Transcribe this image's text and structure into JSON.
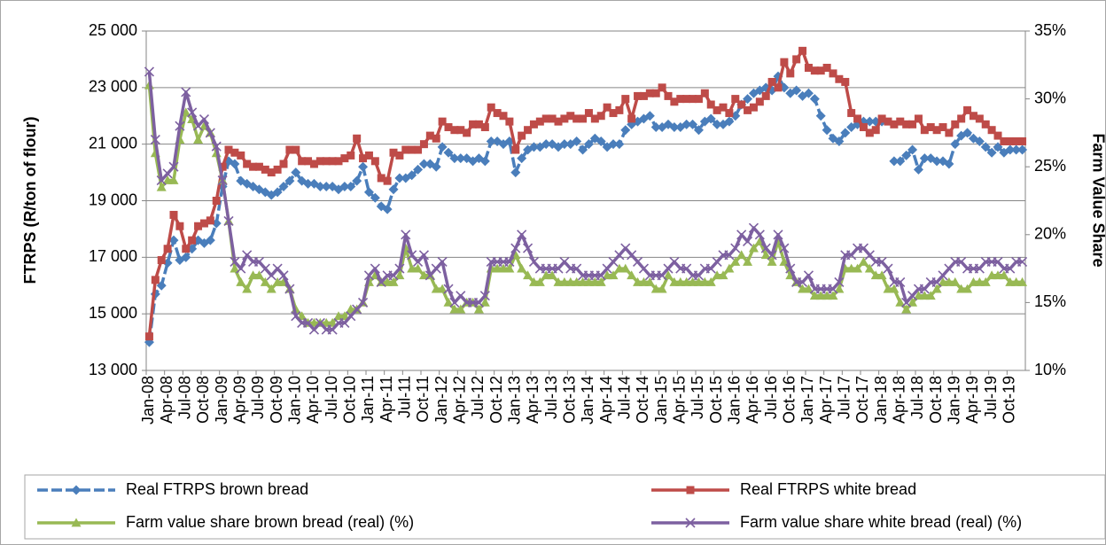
{
  "chart_data": {
    "type": "line",
    "y_label": "FTRPS (R/ton of flour)",
    "y2_label": "Farm Value Share",
    "categories": [
      "Jan-08",
      null,
      null,
      "Apr-08",
      null,
      null,
      "Jul-08",
      null,
      null,
      "Oct-08",
      null,
      null,
      "Jan-09",
      null,
      null,
      "Apr-09",
      null,
      null,
      "Jul-09",
      null,
      null,
      "Oct-09",
      null,
      null,
      "Jan-10",
      null,
      null,
      "Apr-10",
      null,
      null,
      "Jul-10",
      null,
      null,
      "Oct-10",
      null,
      null,
      "Jan-11",
      null,
      null,
      "Apr-11",
      null,
      null,
      "Jul-11",
      null,
      null,
      "Oct-11",
      null,
      null,
      "Jan-12",
      null,
      null,
      "Apr-12",
      null,
      null,
      "Jul-12",
      null,
      null,
      "Oct-12",
      null,
      null,
      "Jan-13",
      null,
      null,
      "Apr-13",
      null,
      null,
      "Jul-13",
      null,
      null,
      "Oct-13",
      null,
      null,
      "Jan-14",
      null,
      null,
      "Apr-14",
      null,
      null,
      "Jul-14",
      null,
      null,
      "Oct-14",
      null,
      null,
      "Jan-15",
      null,
      null,
      "Apr-15",
      null,
      null,
      "Jul-15",
      null,
      null,
      "Oct-15",
      null,
      null,
      "Jan-16",
      null,
      null,
      "Apr-16",
      null,
      null,
      "Jul-16",
      null,
      null,
      "Oct-16",
      null,
      null,
      "Jan-17",
      null,
      null,
      "Apr-17",
      null,
      null,
      "Jul-17",
      null,
      null,
      "Oct-17",
      null,
      null,
      "Jan-18",
      null,
      null,
      "Apr-18",
      null,
      null,
      "Jul-18",
      null,
      null,
      "Oct-18",
      null,
      null,
      "Jan-19",
      null,
      null,
      "Apr-19",
      null,
      null,
      "Jul-19",
      null,
      null,
      "Oct-19",
      null,
      null
    ],
    "series": [
      {
        "name": "Real FTRPS brown bread",
        "color": "#4a7ebb",
        "marker": "diamond",
        "dashed": true,
        "values": [
          14000,
          15700,
          16000,
          16800,
          17600,
          16900,
          17000,
          17300,
          17600,
          17500,
          17600,
          18200,
          19500,
          20400,
          20300,
          19700,
          19600,
          19500,
          19400,
          19300,
          19200,
          19300,
          19500,
          19700,
          20000,
          19700,
          19600,
          19600,
          19500,
          19500,
          19500,
          19400,
          19500,
          19500,
          19700,
          20200,
          19300,
          19100,
          18800,
          18700,
          19400,
          19800,
          19800,
          19900,
          20100,
          20300,
          20300,
          20200,
          20900,
          20700,
          20500,
          20500,
          20500,
          20400,
          20500,
          20400,
          21100,
          21100,
          21000,
          21100,
          20000,
          20500,
          20800,
          20900,
          20900,
          21000,
          21000,
          20900,
          21000,
          21000,
          21100,
          20800,
          21000,
          21200,
          21100,
          20900,
          21000,
          21000,
          21500,
          21700,
          21800,
          21900,
          22000,
          21600,
          21600,
          21700,
          21600,
          21600,
          21700,
          21700,
          21500,
          21800,
          21900,
          21700,
          21700,
          21800,
          22000,
          22400,
          22600,
          22800,
          22900,
          23000,
          22900,
          23400,
          23000,
          22800,
          22900,
          22700,
          22800,
          22600,
          22000,
          21500,
          21200,
          21100,
          21400,
          21600,
          21700,
          21800,
          21800,
          21800,
          21800,
          null,
          20400,
          20400,
          20600,
          20800,
          20100,
          20500,
          20500,
          20400,
          20400,
          20300,
          21000,
          21300,
          21400,
          21200,
          21100,
          20900,
          20700,
          20900,
          20700,
          20800,
          20800,
          20800
        ]
      },
      {
        "name": "Real FTRPS white bread",
        "color": "#be4b48",
        "marker": "square",
        "values": [
          14200,
          16200,
          16900,
          17300,
          18500,
          18100,
          17300,
          17600,
          18100,
          18200,
          18300,
          19000,
          20200,
          20800,
          20700,
          20600,
          20300,
          20200,
          20200,
          20100,
          20000,
          20100,
          20300,
          20800,
          20800,
          20400,
          20400,
          20300,
          20400,
          20400,
          20400,
          20400,
          20500,
          20600,
          21200,
          20500,
          20600,
          20400,
          19800,
          19700,
          20700,
          20600,
          20800,
          20800,
          20800,
          21000,
          21300,
          21200,
          21800,
          21600,
          21500,
          21500,
          21400,
          21700,
          21700,
          21600,
          22300,
          22100,
          22000,
          21800,
          20800,
          21300,
          21500,
          21700,
          21800,
          21900,
          21900,
          21800,
          21900,
          22000,
          21900,
          21900,
          22100,
          21900,
          22000,
          22300,
          22100,
          22200,
          22600,
          21900,
          22700,
          22700,
          22800,
          22800,
          23000,
          22700,
          22500,
          22600,
          22600,
          22600,
          22600,
          22800,
          22400,
          22200,
          22300,
          22100,
          22600,
          22400,
          22200,
          22300,
          22500,
          22700,
          23200,
          23000,
          23900,
          23500,
          24000,
          24300,
          23700,
          23600,
          23600,
          23700,
          23500,
          23300,
          23200,
          22100,
          21900,
          21600,
          21400,
          21500,
          21900,
          21800,
          21700,
          21800,
          21700,
          21700,
          21900,
          21500,
          21600,
          21500,
          21600,
          21400,
          21700,
          21900,
          22200,
          22000,
          21900,
          21700,
          21500,
          21300,
          21100,
          21100,
          21100,
          21100
        ]
      },
      {
        "name": "Farm value share brown bread (real) (%)",
        "color": "#98b954",
        "marker": "triangle",
        "axis": "y2",
        "values": [
          31,
          26,
          23.5,
          24,
          24,
          27,
          29,
          28.5,
          27,
          28,
          27.5,
          26,
          24,
          21,
          17.5,
          16.5,
          16,
          17,
          17,
          16.5,
          16,
          16.5,
          16.5,
          16,
          14.5,
          14,
          13.5,
          13.5,
          13.5,
          13.5,
          13.5,
          14,
          14,
          14.5,
          14.5,
          15,
          16.5,
          17,
          16.5,
          16.5,
          16.5,
          17,
          19,
          17.5,
          17.5,
          17,
          17,
          16,
          16,
          15,
          14.5,
          14.5,
          15,
          15,
          14.5,
          15,
          17.5,
          17.5,
          17.5,
          17.5,
          18.5,
          17.5,
          17,
          16.5,
          16.5,
          17,
          17,
          16.5,
          16.5,
          16.5,
          16.5,
          16.5,
          16.5,
          16.5,
          16.5,
          17,
          17,
          17.5,
          17.5,
          17,
          16.5,
          16.5,
          16.5,
          16,
          16,
          17,
          16.5,
          16.5,
          16.5,
          16.5,
          16.5,
          16.5,
          16.5,
          17,
          17,
          17.5,
          18,
          18.5,
          18,
          19,
          19.5,
          18.5,
          18,
          19.5,
          18,
          17,
          16.5,
          16,
          16,
          15.5,
          15.5,
          15.5,
          15.5,
          16,
          17.5,
          17.5,
          17.5,
          18,
          17.5,
          17,
          17,
          16,
          16,
          15,
          14.5,
          15,
          15.5,
          15.5,
          15.5,
          16,
          16.5,
          16.5,
          16.5,
          16,
          16,
          16.5,
          16.5,
          16.5,
          17,
          17,
          17,
          16.5,
          16.5,
          16.5
        ]
      },
      {
        "name": "Farm value share white bread (real) (%)",
        "color": "#7d60a0",
        "marker": "cross",
        "axis": "y2",
        "values": [
          32,
          27,
          24,
          24.5,
          25,
          28,
          30.5,
          29,
          28,
          28.5,
          27.5,
          26.5,
          24,
          21,
          18,
          17.5,
          18.5,
          18,
          18,
          17.5,
          17,
          17.5,
          17,
          16,
          14,
          13.5,
          13.5,
          13,
          13.5,
          13,
          13,
          13.5,
          13.5,
          14,
          14.5,
          15,
          17,
          17.5,
          16.5,
          17,
          17,
          17.5,
          20,
          18.5,
          18,
          18.5,
          17,
          17.5,
          18,
          16,
          15,
          15.5,
          15,
          15,
          15,
          15.5,
          18,
          18,
          18,
          18,
          19,
          20,
          19,
          18,
          17.5,
          17.5,
          17.5,
          17.5,
          18,
          17.5,
          17.5,
          17,
          17,
          17,
          17,
          17.5,
          18,
          18.5,
          19,
          18.5,
          18,
          17.5,
          17,
          17,
          17,
          17.5,
          18,
          17.5,
          17.5,
          17,
          17,
          17.5,
          17.5,
          18,
          18.5,
          18.5,
          19,
          20,
          19.5,
          20.5,
          20,
          19,
          18.5,
          20,
          19,
          17.5,
          16.5,
          16.5,
          17,
          16,
          16,
          16,
          16,
          16.5,
          18.5,
          18.5,
          19,
          19,
          18.5,
          18,
          18,
          17.5,
          16.5,
          16.5,
          15,
          15.5,
          16,
          16,
          16.5,
          16.5,
          17,
          17.5,
          18,
          18,
          17.5,
          17.5,
          17.5,
          18,
          18,
          18,
          17.5,
          17.5,
          18,
          18
        ]
      }
    ],
    "ylim": [
      13000,
      25000
    ],
    "yticks": [
      {
        "value": 13000,
        "label": "13 000"
      },
      {
        "value": 15000,
        "label": "15 000"
      },
      {
        "value": 17000,
        "label": "17 000"
      },
      {
        "value": 19000,
        "label": "19 000"
      },
      {
        "value": 21000,
        "label": "21 000"
      },
      {
        "value": 23000,
        "label": "23 000"
      },
      {
        "value": 25000,
        "label": "25 000"
      }
    ],
    "y2lim": [
      10,
      35
    ],
    "y2ticks": [
      {
        "value": 10,
        "label": "10%"
      },
      {
        "value": 15,
        "label": "15%"
      },
      {
        "value": 20,
        "label": "20%"
      },
      {
        "value": 25,
        "label": "25%"
      },
      {
        "value": 30,
        "label": "30%"
      },
      {
        "value": 35,
        "label": "35%"
      }
    ],
    "grid": true,
    "legend": "bottom"
  }
}
